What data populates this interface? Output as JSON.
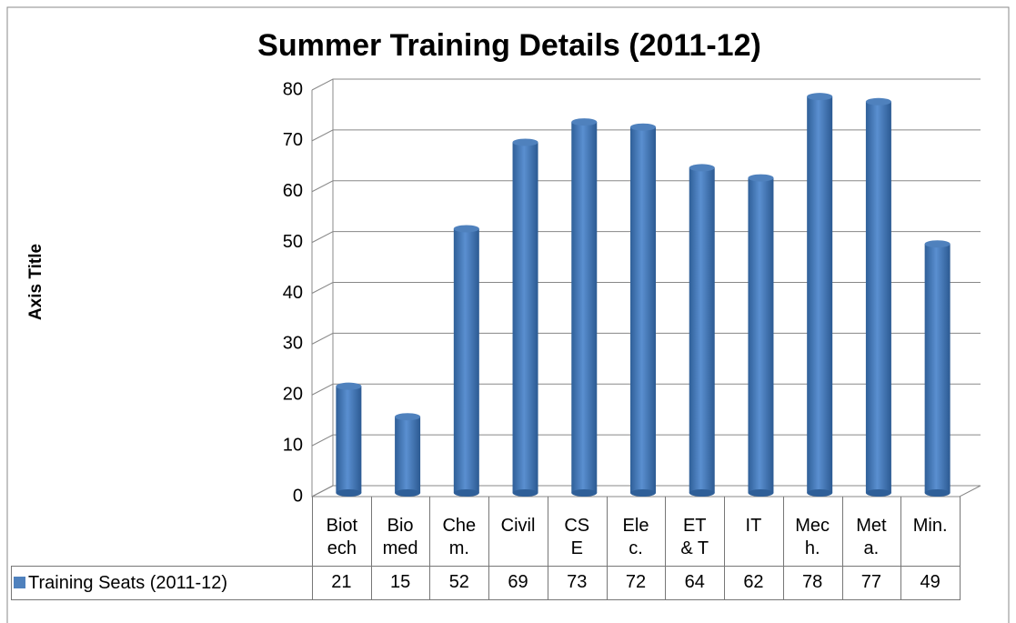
{
  "chart_data": {
    "type": "bar",
    "title": "Summer Training Details (2011-12)",
    "y_label": "Axis Title",
    "categories": [
      "Biotech",
      "Biomed",
      "Chem.",
      "Civil",
      "CSE",
      "Elec.",
      "ET & T",
      "IT",
      "Mech.",
      "Meta.",
      "Min."
    ],
    "series": [
      {
        "name": "Training Seats (2011-12)",
        "color": "#4f81bd",
        "values": [
          21,
          15,
          52,
          69,
          73,
          72,
          64,
          62,
          78,
          77,
          49
        ]
      }
    ],
    "ylim": [
      0,
      80
    ],
    "yticks": [
      0,
      10,
      20,
      30,
      40,
      50,
      60,
      70,
      80
    ],
    "grid": true
  }
}
